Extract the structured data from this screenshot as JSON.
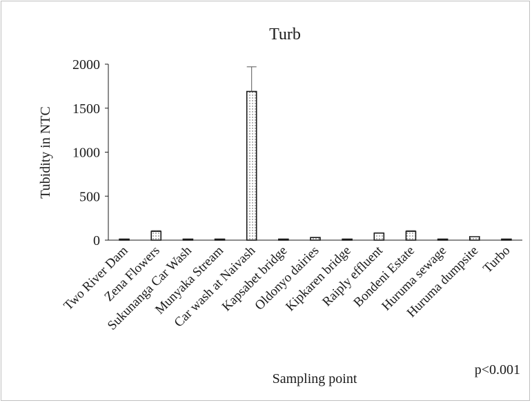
{
  "chart_data": {
    "type": "bar",
    "title": "Turb",
    "xlabel": "Sampling point",
    "ylabel": "Tubidity in NTC",
    "ylim": [
      0,
      2000
    ],
    "yticks": [
      "0",
      "500",
      "1000",
      "1500",
      "2000"
    ],
    "categories": [
      "Two River Dam",
      "Zena Flowers",
      "Sukunanga Car Wash",
      "Munyaka Stream",
      "Car wash at Naivash",
      "Kapsabet bridge",
      "Oldonyo dairies",
      "Kipkaren bridge",
      "Raiply effluent",
      "Bondeni Estate",
      "Huruma sewage",
      "Huruma dumpsite",
      "Turbo"
    ],
    "values": [
      10,
      100,
      5,
      6,
      1690,
      5,
      30,
      3,
      80,
      100,
      5,
      40,
      4
    ],
    "error": [
      2,
      8,
      1,
      1,
      280,
      1,
      3,
      1,
      5,
      8,
      1,
      3,
      1
    ],
    "grid": false,
    "annotation": "p<0.001",
    "bar_fill": "dotted",
    "bar_edge_color": "#1a1a1a"
  }
}
